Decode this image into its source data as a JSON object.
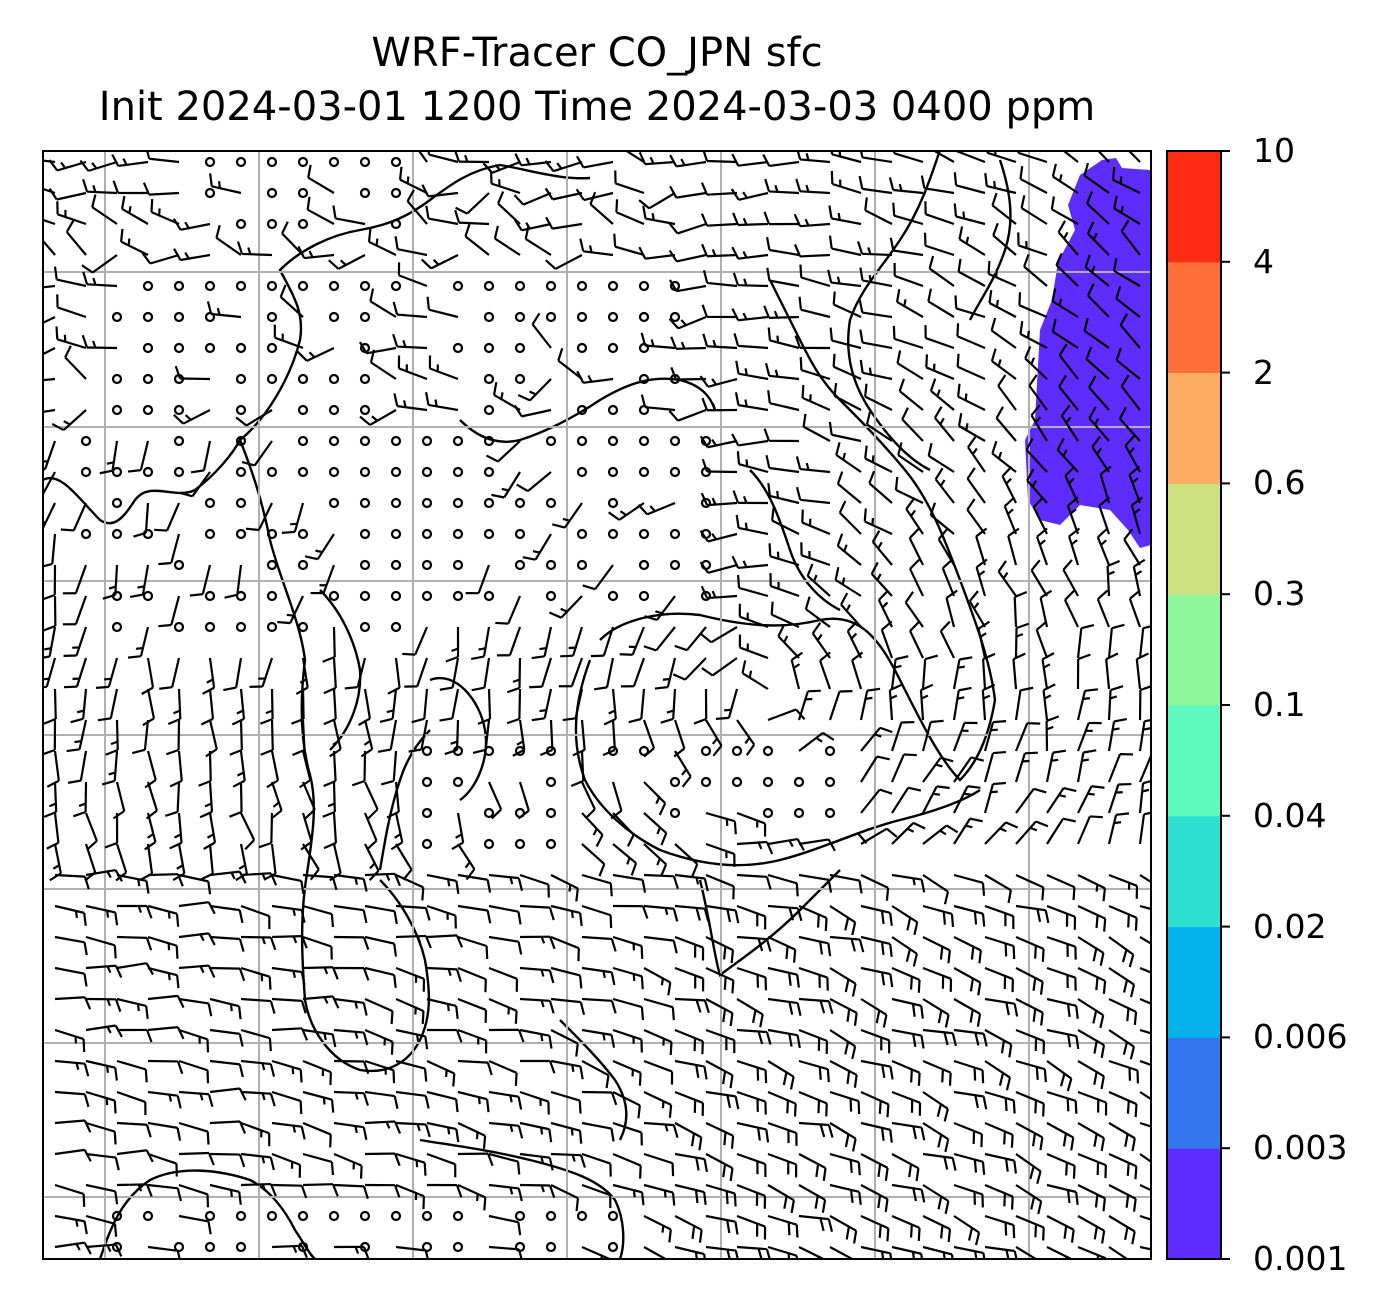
{
  "title": {
    "line1": "WRF-Tracer CO_JPN sfc",
    "line2": "Init 2024-03-01 1200 Time 2024-03-03 0400 ppm"
  },
  "colorbar": {
    "levels": [
      "0.001",
      "0.003",
      "0.006",
      "0.02",
      "0.04",
      "0.1",
      "0.3",
      "0.6",
      "2",
      "4",
      "10"
    ],
    "colors": [
      "#5e2cff",
      "#3476f0",
      "#06b2ec",
      "#2ee0d2",
      "#5dfabd",
      "#8ef79c",
      "#cde181",
      "#fdad63",
      "#ff6d39",
      "#ff2a14"
    ]
  },
  "map": {
    "field": "CO tracer concentration",
    "wind_symbols": "wind barbs",
    "gridlines": true,
    "plume_color": "#5e2cff"
  }
}
